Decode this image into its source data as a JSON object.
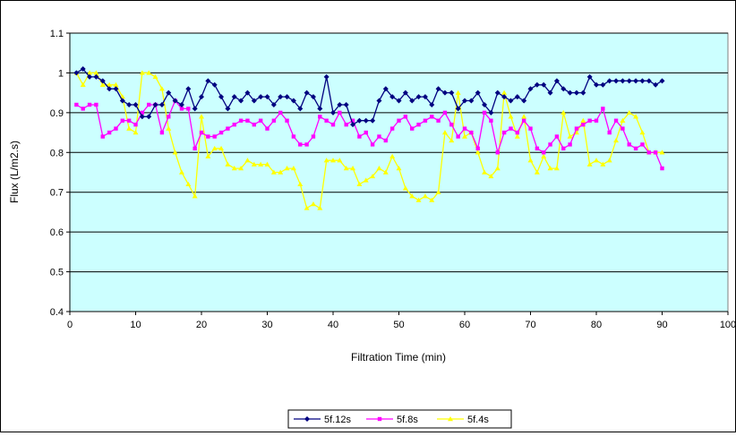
{
  "chart_data": {
    "type": "line",
    "title": "",
    "xlabel": "Filtration Time (min)",
    "ylabel": "Flux (L/m2.s)",
    "xlim": [
      0,
      100
    ],
    "ylim": [
      0.4,
      1.1
    ],
    "x_ticks": [
      0,
      10,
      20,
      30,
      40,
      50,
      60,
      70,
      80,
      90,
      100
    ],
    "y_ticks": [
      0.4,
      0.5,
      0.6,
      0.7,
      0.8,
      0.9,
      1,
      1.1
    ],
    "x_tick_labels": [
      "0",
      "10",
      "20",
      "30",
      "40",
      "50",
      "60",
      "70",
      "80",
      "90",
      "100"
    ],
    "y_tick_labels": [
      "0.4",
      "0.5",
      "0.6",
      "0.7",
      "0.8",
      "0.9",
      "1",
      "1.1"
    ],
    "grid": "horizontal",
    "plot_background": "#ccffff",
    "legend_position": "bottom",
    "series": [
      {
        "name": "5f.12s",
        "color": "#000080",
        "marker": "diamond",
        "x": [
          1,
          2,
          3,
          4,
          5,
          6,
          7,
          8,
          9,
          10,
          11,
          12,
          13,
          14,
          15,
          16,
          17,
          18,
          19,
          20,
          21,
          22,
          23,
          24,
          25,
          26,
          27,
          28,
          29,
          30,
          31,
          32,
          33,
          34,
          35,
          36,
          37,
          38,
          39,
          40,
          41,
          42,
          43,
          44,
          45,
          46,
          47,
          48,
          49,
          50,
          51,
          52,
          53,
          54,
          55,
          56,
          57,
          58,
          59,
          60,
          61,
          62,
          63,
          64,
          65,
          66,
          67,
          68,
          69,
          70,
          71,
          72,
          73,
          74,
          75,
          76,
          77,
          78,
          79,
          80,
          81,
          82,
          83,
          84,
          85,
          86,
          87,
          88,
          89,
          90
        ],
        "y": [
          1.0,
          1.01,
          0.99,
          0.99,
          0.98,
          0.96,
          0.96,
          0.93,
          0.92,
          0.92,
          0.89,
          0.89,
          0.92,
          0.92,
          0.95,
          0.93,
          0.92,
          0.96,
          0.91,
          0.94,
          0.98,
          0.97,
          0.94,
          0.91,
          0.94,
          0.93,
          0.95,
          0.93,
          0.94,
          0.94,
          0.92,
          0.94,
          0.94,
          0.93,
          0.91,
          0.95,
          0.94,
          0.91,
          0.99,
          0.9,
          0.92,
          0.92,
          0.87,
          0.88,
          0.88,
          0.88,
          0.93,
          0.96,
          0.94,
          0.93,
          0.95,
          0.93,
          0.94,
          0.94,
          0.92,
          0.96,
          0.95,
          0.95,
          0.91,
          0.93,
          0.93,
          0.95,
          0.92,
          0.9,
          0.95,
          0.94,
          0.93,
          0.94,
          0.93,
          0.96,
          0.97,
          0.97,
          0.95,
          0.98,
          0.96,
          0.95,
          0.95,
          0.95,
          0.99,
          0.97,
          0.97,
          0.98,
          0.98,
          0.98,
          0.98,
          0.98,
          0.98,
          0.98,
          0.97,
          0.98
        ]
      },
      {
        "name": "5f.8s",
        "color": "#ff00ff",
        "marker": "square",
        "x": [
          1,
          2,
          3,
          4,
          5,
          6,
          7,
          8,
          9,
          10,
          11,
          12,
          13,
          14,
          15,
          16,
          17,
          18,
          19,
          20,
          21,
          22,
          23,
          24,
          25,
          26,
          27,
          28,
          29,
          30,
          31,
          32,
          33,
          34,
          35,
          36,
          37,
          38,
          39,
          40,
          41,
          42,
          43,
          44,
          45,
          46,
          47,
          48,
          49,
          50,
          51,
          52,
          53,
          54,
          55,
          56,
          57,
          58,
          59,
          60,
          61,
          62,
          63,
          64,
          65,
          66,
          67,
          68,
          69,
          70,
          71,
          72,
          73,
          74,
          75,
          76,
          77,
          78,
          79,
          80,
          81,
          82,
          83,
          84,
          85,
          86,
          87,
          88,
          89,
          90
        ],
        "y": [
          0.92,
          0.91,
          0.92,
          0.92,
          0.84,
          0.85,
          0.86,
          0.88,
          0.88,
          0.87,
          0.9,
          0.92,
          0.92,
          0.85,
          0.89,
          0.93,
          0.91,
          0.91,
          0.81,
          0.85,
          0.84,
          0.84,
          0.85,
          0.86,
          0.87,
          0.88,
          0.88,
          0.87,
          0.88,
          0.86,
          0.88,
          0.9,
          0.88,
          0.84,
          0.82,
          0.82,
          0.84,
          0.89,
          0.88,
          0.87,
          0.9,
          0.87,
          0.88,
          0.84,
          0.85,
          0.82,
          0.84,
          0.83,
          0.86,
          0.88,
          0.89,
          0.86,
          0.87,
          0.88,
          0.89,
          0.88,
          0.9,
          0.87,
          0.84,
          0.86,
          0.85,
          0.81,
          0.9,
          0.88,
          0.8,
          0.85,
          0.86,
          0.85,
          0.88,
          0.86,
          0.81,
          0.8,
          0.82,
          0.84,
          0.81,
          0.82,
          0.86,
          0.87,
          0.88,
          0.88,
          0.91,
          0.85,
          0.88,
          0.86,
          0.82,
          0.81,
          0.82,
          0.8,
          0.8,
          0.76
        ]
      },
      {
        "name": "5f.4s",
        "color": "#ffff00",
        "marker": "triangle",
        "x": [
          1,
          2,
          3,
          4,
          5,
          6,
          7,
          8,
          9,
          10,
          11,
          12,
          13,
          14,
          15,
          16,
          17,
          18,
          19,
          20,
          21,
          22,
          23,
          24,
          25,
          26,
          27,
          28,
          29,
          30,
          31,
          32,
          33,
          34,
          35,
          36,
          37,
          38,
          39,
          40,
          41,
          42,
          43,
          44,
          45,
          46,
          47,
          48,
          49,
          50,
          51,
          52,
          53,
          54,
          55,
          56,
          57,
          58,
          59,
          60,
          61,
          62,
          63,
          64,
          65,
          66,
          67,
          68,
          69,
          70,
          71,
          72,
          73,
          74,
          75,
          76,
          77,
          78,
          79,
          80,
          81,
          82,
          83,
          84,
          85,
          86,
          87,
          88,
          89,
          90
        ],
        "y": [
          1.0,
          0.97,
          1.0,
          1.0,
          0.97,
          0.97,
          0.97,
          0.94,
          0.86,
          0.85,
          1.0,
          1.0,
          0.99,
          0.96,
          0.86,
          0.8,
          0.75,
          0.72,
          0.69,
          0.89,
          0.79,
          0.81,
          0.81,
          0.77,
          0.76,
          0.76,
          0.78,
          0.77,
          0.77,
          0.77,
          0.75,
          0.75,
          0.76,
          0.76,
          0.72,
          0.66,
          0.67,
          0.66,
          0.78,
          0.78,
          0.78,
          0.76,
          0.76,
          0.72,
          0.73,
          0.74,
          0.76,
          0.75,
          0.79,
          0.76,
          0.71,
          0.69,
          0.68,
          0.69,
          0.68,
          0.7,
          0.85,
          0.83,
          0.95,
          0.84,
          0.85,
          0.8,
          0.75,
          0.74,
          0.76,
          0.95,
          0.89,
          0.84,
          0.89,
          0.78,
          0.75,
          0.79,
          0.76,
          0.76,
          0.9,
          0.84,
          0.85,
          0.88,
          0.77,
          0.78,
          0.77,
          0.78,
          0.83,
          0.88,
          0.9,
          0.89,
          0.85,
          0.8,
          0.8,
          0.8
        ]
      }
    ]
  }
}
